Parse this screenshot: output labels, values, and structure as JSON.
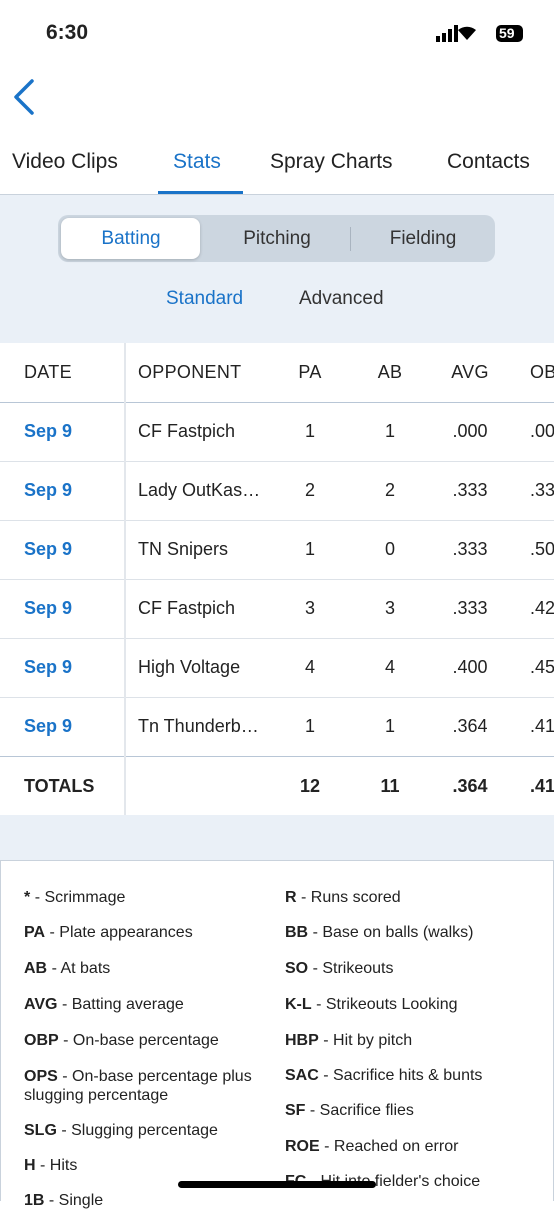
{
  "status_bar": {
    "time": "6:30",
    "battery": "59"
  },
  "tabs": {
    "items": [
      "Video Clips",
      "Stats",
      "Spray Charts",
      "Contacts"
    ],
    "selected": 1
  },
  "segments": {
    "items": [
      "Batting",
      "Pitching",
      "Fielding"
    ],
    "selected": 0
  },
  "subtabs": {
    "items": [
      "Standard",
      "Advanced"
    ],
    "selected": 0
  },
  "table": {
    "headers": [
      "DATE",
      "OPPONENT",
      "PA",
      "AB",
      "AVG",
      "OB"
    ],
    "rows": [
      [
        "Sep 9",
        "CF Fastpich",
        "1",
        "1",
        ".000",
        ".00"
      ],
      [
        "Sep 9",
        "Lady OutKas…",
        "2",
        "2",
        ".333",
        ".33"
      ],
      [
        "Sep 9",
        "TN Snipers",
        "1",
        "0",
        ".333",
        ".50"
      ],
      [
        "Sep 9",
        "CF Fastpich",
        "3",
        "3",
        ".333",
        ".42"
      ],
      [
        "Sep 9",
        "High Voltage",
        "4",
        "4",
        ".400",
        ".45"
      ],
      [
        "Sep 9",
        "Tn Thunderb…",
        "1",
        "1",
        ".364",
        ".41"
      ]
    ],
    "totals": {
      "label": "TOTALS",
      "values": [
        "12",
        "11",
        ".364",
        ".41"
      ]
    }
  },
  "legend": {
    "left": [
      {
        "abbr": "*",
        "desc": "- Scrimmage"
      },
      {
        "abbr": "PA",
        "desc": "- Plate appearances"
      },
      {
        "abbr": "AB",
        "desc": "- At bats"
      },
      {
        "abbr": "AVG",
        "desc": "- Batting average"
      },
      {
        "abbr": "OBP",
        "desc": "- On-base percentage"
      },
      {
        "abbr": "OPS",
        "desc": "- On-base percentage plus slugging percentage"
      },
      {
        "abbr": "SLG",
        "desc": "- Slugging percentage"
      },
      {
        "abbr": "H",
        "desc": "- Hits"
      },
      {
        "abbr": "1B",
        "desc": "- Single"
      }
    ],
    "right": [
      {
        "abbr": "R",
        "desc": "- Runs scored"
      },
      {
        "abbr": "BB",
        "desc": "- Base on balls (walks)"
      },
      {
        "abbr": "SO",
        "desc": "- Strikeouts"
      },
      {
        "abbr": "K-L",
        "desc": "- Strikeouts Looking"
      },
      {
        "abbr": "HBP",
        "desc": "- Hit by pitch"
      },
      {
        "abbr": "SAC",
        "desc": "- Sacrifice hits & bunts"
      },
      {
        "abbr": "SF",
        "desc": "- Sacrifice flies"
      },
      {
        "abbr": "ROE",
        "desc": "- Reached on error"
      },
      {
        "abbr": "FC",
        "desc": "- Hit into fielder's choice"
      }
    ]
  }
}
